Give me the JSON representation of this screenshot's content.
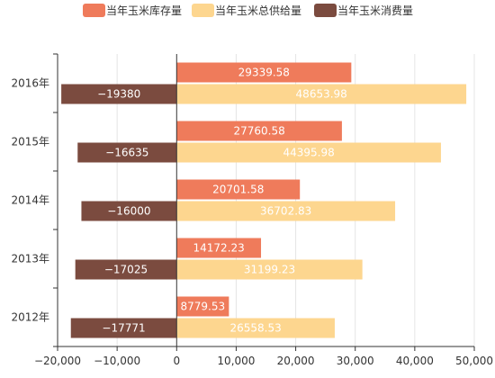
{
  "chart_data": {
    "type": "bar",
    "orientation": "horizontal",
    "categories": [
      "2016年",
      "2015年",
      "2014年",
      "2013年",
      "2012年"
    ],
    "series": [
      {
        "name": "当年玉米库存量",
        "color": "#ef7b5b",
        "values": [
          29339.58,
          27760.58,
          20701.58,
          14172.23,
          8779.53
        ]
      },
      {
        "name": "当年玉米总供给量",
        "color": "#fdd68f",
        "values": [
          48653.98,
          44395.98,
          36702.83,
          31199.23,
          26558.53
        ]
      },
      {
        "name": "当年玉米消费量",
        "color": "#7b4b3f",
        "values": [
          -19380,
          -16635,
          -16000,
          -17025,
          -17771
        ]
      }
    ],
    "xlim": [
      -20000,
      50000
    ],
    "xticks": [
      -20000,
      -10000,
      0,
      10000,
      20000,
      30000,
      40000,
      50000
    ],
    "xtick_labels": [
      "−20,000",
      "−10,000",
      "0",
      "10,000",
      "20,000",
      "30,000",
      "40,000",
      "50,000"
    ],
    "data_labels": [
      [
        "29339.58",
        "48653.98",
        "−19380"
      ],
      [
        "27760.58",
        "44395.98",
        "−16635"
      ],
      [
        "20701.58",
        "36702.83",
        "−16000"
      ],
      [
        "14172.23",
        "31199.23",
        "−17025"
      ],
      [
        "8779.53",
        "26558.53",
        "−17771"
      ]
    ],
    "grid": "vertical",
    "legend_position": "top-center",
    "title": "",
    "xlabel": "",
    "ylabel": ""
  }
}
